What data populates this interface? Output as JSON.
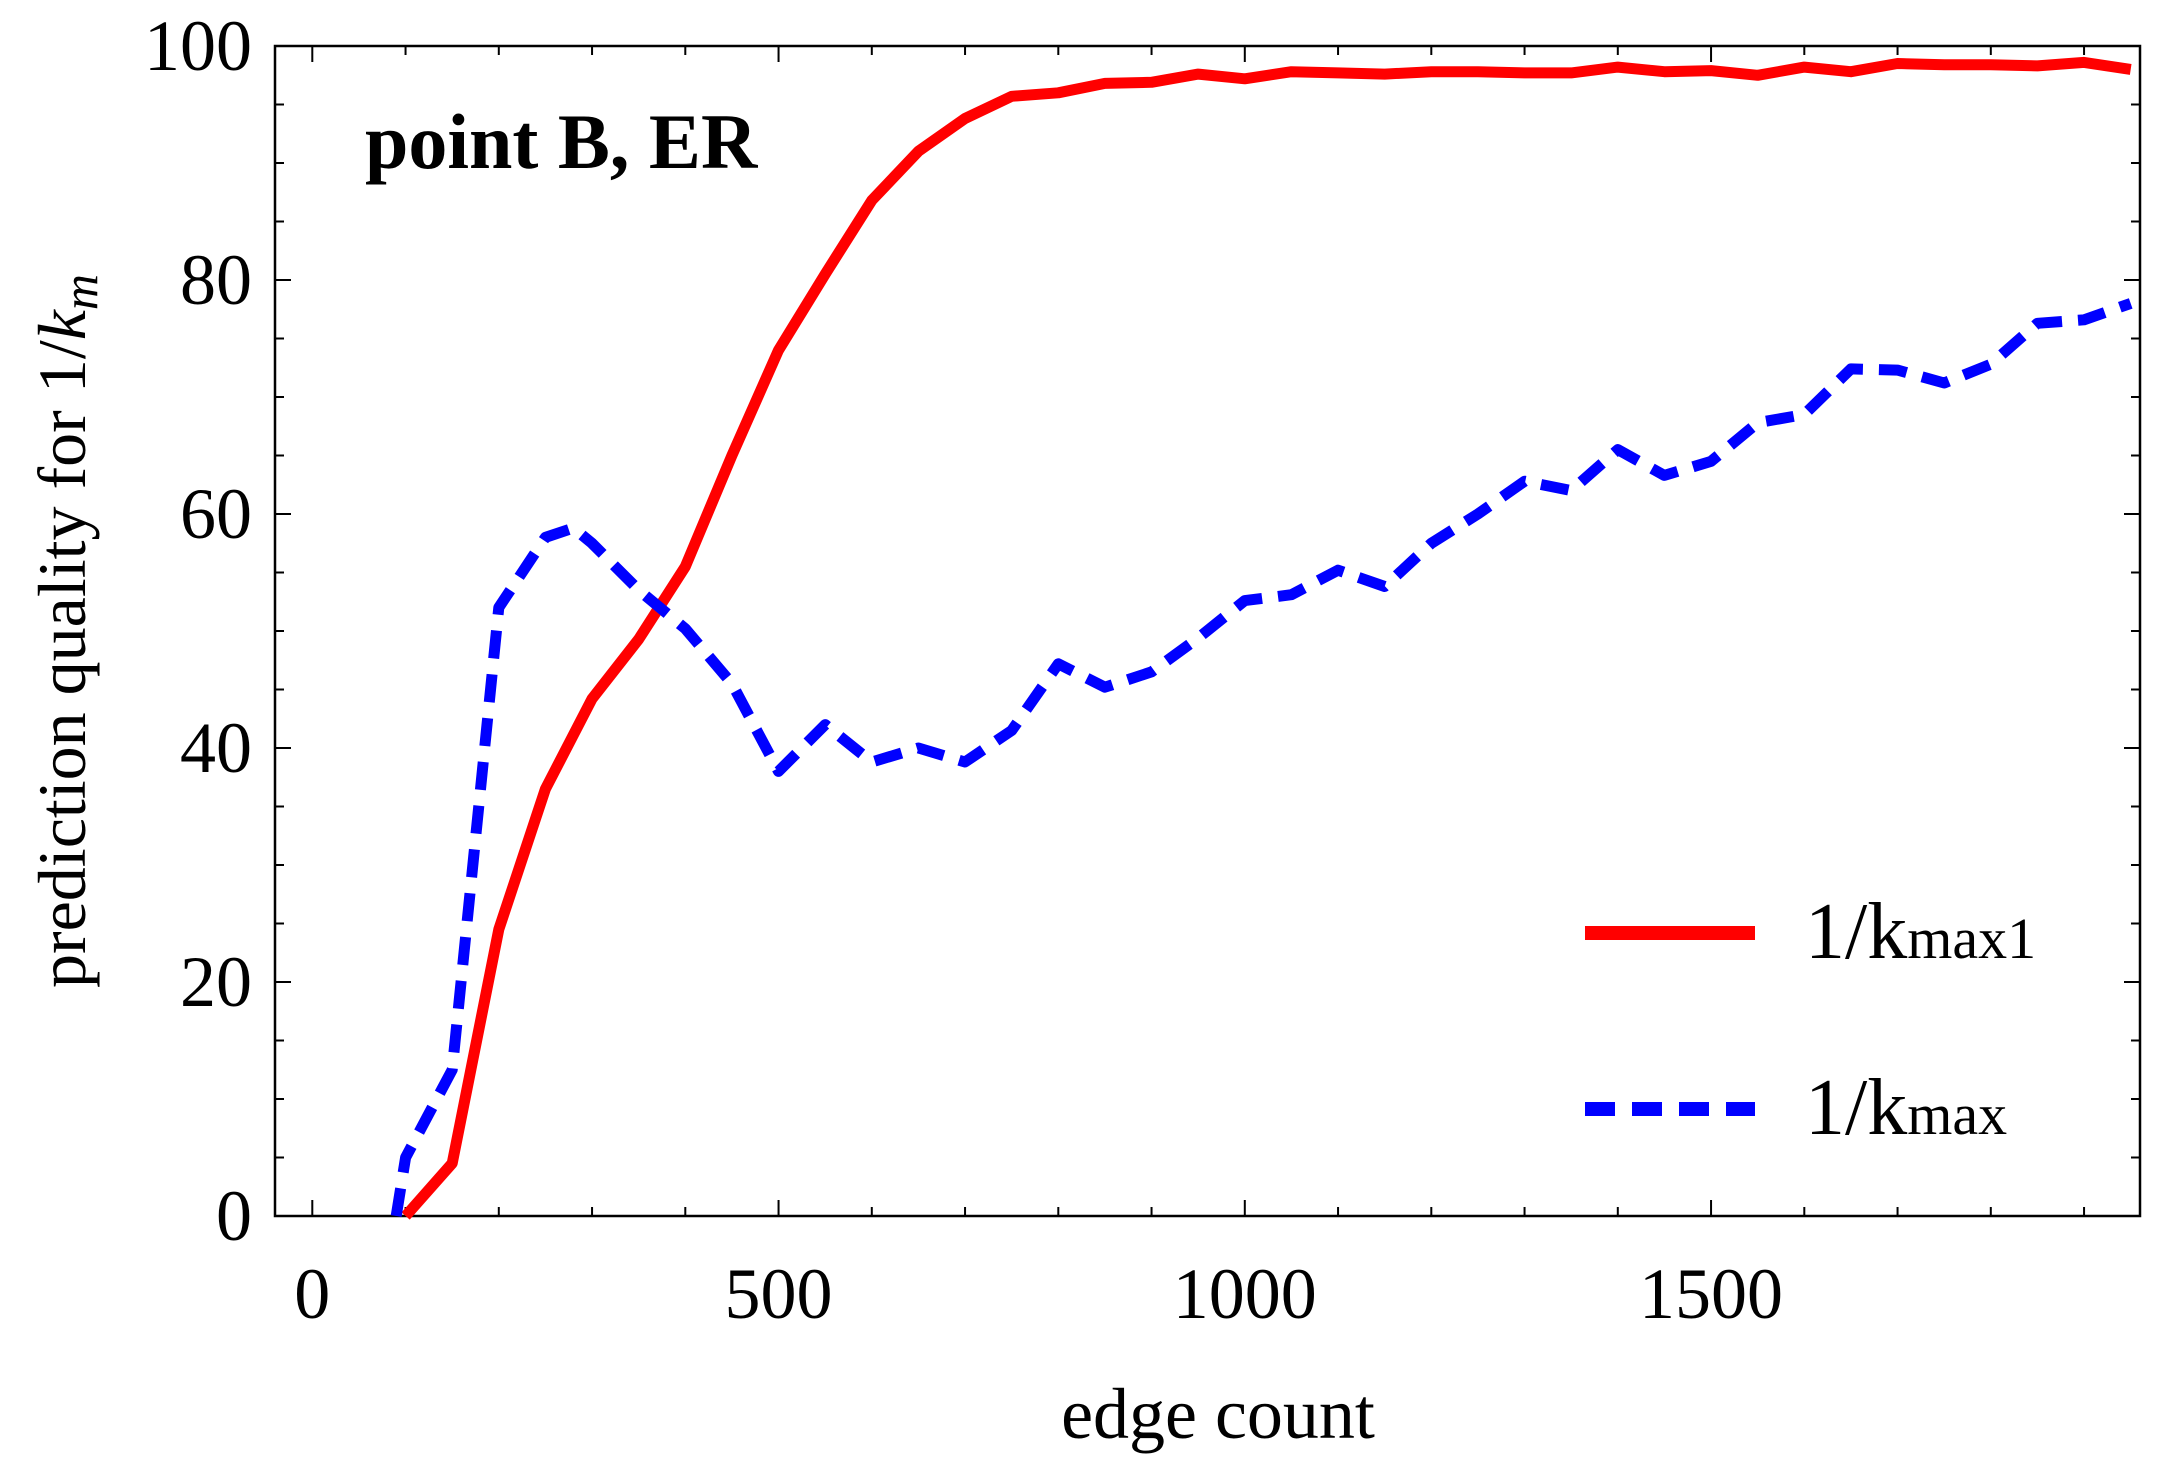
{
  "chart_data": {
    "type": "line",
    "annotation": "point B, ER",
    "xlabel": "edge count",
    "ylabel_prefix": "prediction quality for 1/",
    "ylabel_k": "k",
    "ylabel_sub": "m",
    "xlim": [
      -40,
      1960
    ],
    "ylim": [
      0,
      100
    ],
    "xticks": [
      0,
      500,
      1000,
      1500
    ],
    "xtick_labels": [
      "0",
      "500",
      "1000",
      "1500"
    ],
    "yticks": [
      0,
      20,
      40,
      60,
      80,
      100
    ],
    "ytick_labels": [
      "0",
      "20",
      "40",
      "60",
      "80",
      "100"
    ],
    "grid": false,
    "legend_position": "bottom-right",
    "series": [
      {
        "legend_main": "1/k",
        "legend_sub": "max1",
        "color": "#ff0000",
        "style": "solid",
        "x": [
          100,
          150,
          200,
          250,
          300,
          350,
          400,
          450,
          500,
          550,
          600,
          650,
          700,
          750,
          800,
          850,
          900,
          950,
          1000,
          1050,
          1100,
          1150,
          1200,
          1250,
          1300,
          1350,
          1400,
          1450,
          1500,
          1550,
          1600,
          1650,
          1700,
          1750,
          1800,
          1850,
          1900,
          1950
        ],
        "y": [
          0,
          4.5,
          24.5,
          36.5,
          44.2,
          49.3,
          55.5,
          65,
          74,
          80.5,
          86.8,
          91,
          93.8,
          95.7,
          96,
          96.8,
          96.9,
          97.6,
          97.2,
          97.8,
          97.7,
          97.6,
          97.8,
          97.8,
          97.7,
          97.7,
          98.2,
          97.8,
          97.9,
          97.5,
          98.2,
          97.8,
          98.5,
          98.4,
          98.4,
          98.3,
          98.6,
          98
        ]
      },
      {
        "legend_main": "1/k",
        "legend_sub": "max",
        "color": "#0000ff",
        "style": "dashed",
        "x": [
          90,
          100,
          150,
          200,
          250,
          280,
          300,
          350,
          400,
          450,
          500,
          550,
          600,
          650,
          700,
          750,
          800,
          850,
          900,
          950,
          1000,
          1050,
          1100,
          1150,
          1200,
          1250,
          1300,
          1350,
          1400,
          1450,
          1500,
          1550,
          1600,
          1650,
          1700,
          1750,
          1800,
          1850,
          1900,
          1950
        ],
        "y": [
          0,
          5,
          12.5,
          52,
          58,
          58.8,
          57.5,
          53.5,
          50.2,
          45.5,
          38,
          42,
          38.8,
          40,
          38.8,
          41.5,
          47.2,
          45.2,
          46.5,
          49.4,
          52.6,
          53.1,
          55.2,
          53.8,
          57.5,
          60,
          62.8,
          62,
          65.5,
          63.3,
          64.5,
          67.8,
          68.5,
          72.4,
          72.3,
          71.2,
          72.8,
          76.3,
          76.6,
          78
        ]
      }
    ]
  }
}
